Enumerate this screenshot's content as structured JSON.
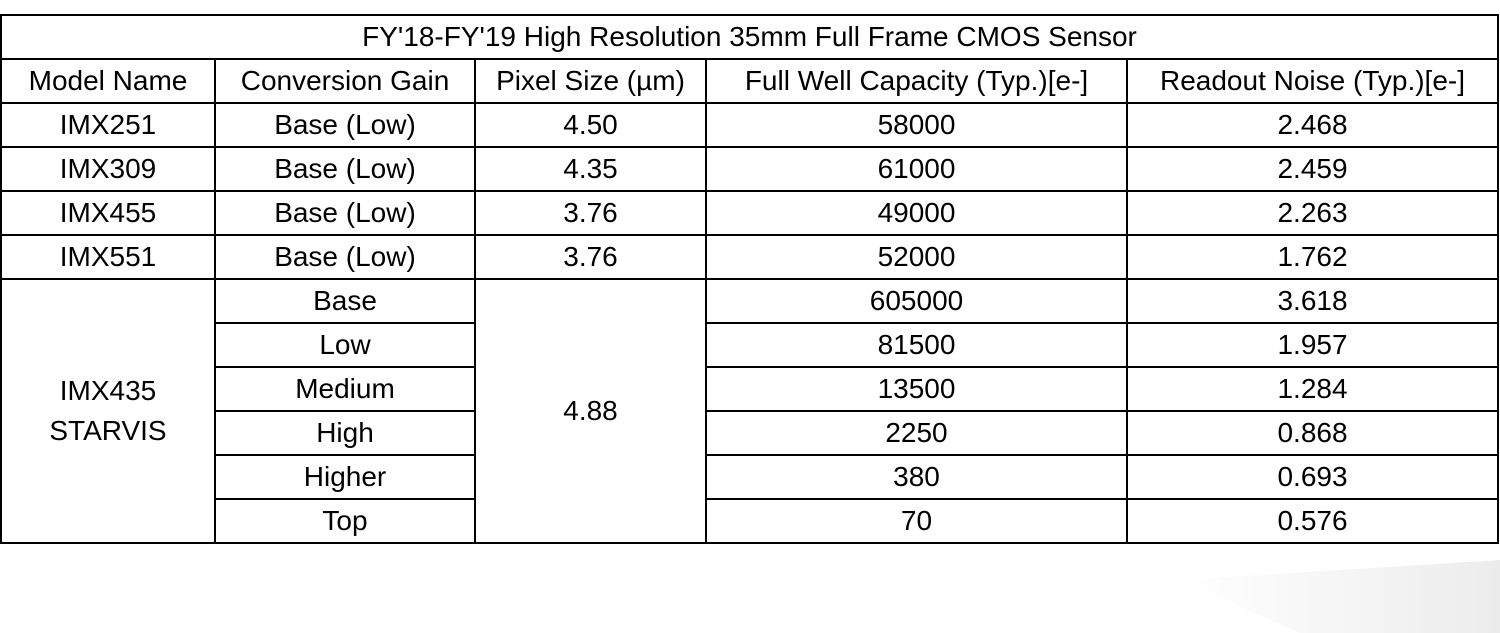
{
  "table": {
    "title": "FY'18-FY'19 High Resolution 35mm Full Frame CMOS Sensor",
    "header": [
      "Model Name",
      "Conversion Gain",
      "Pixel Size (µm)",
      "Full Well Capacity (Typ.)[e-]",
      "Readout Noise (Typ.)[e-]"
    ],
    "rows": [
      [
        "IMX251",
        "Base (Low)",
        "4.50",
        "58000",
        "2.468"
      ],
      [
        "IMX309",
        "Base (Low)",
        "4.35",
        "61000",
        "2.459"
      ],
      [
        "IMX455",
        "Base (Low)",
        "3.76",
        "49000",
        "2.263"
      ],
      [
        "IMX551",
        "Base (Low)",
        "3.76",
        "52000",
        "1.762"
      ]
    ],
    "group": {
      "model_lines": [
        "IMX435",
        "STARVIS"
      ],
      "pixel_size": "4.88",
      "rows": [
        [
          "Base",
          "605000",
          "3.618"
        ],
        [
          "Low",
          "81500",
          "1.957"
        ],
        [
          "Medium",
          "13500",
          "1.284"
        ],
        [
          "High",
          "2250",
          "0.868"
        ],
        [
          "Higher",
          "380",
          "0.693"
        ],
        [
          "Top",
          "70",
          "0.576"
        ]
      ]
    }
  }
}
